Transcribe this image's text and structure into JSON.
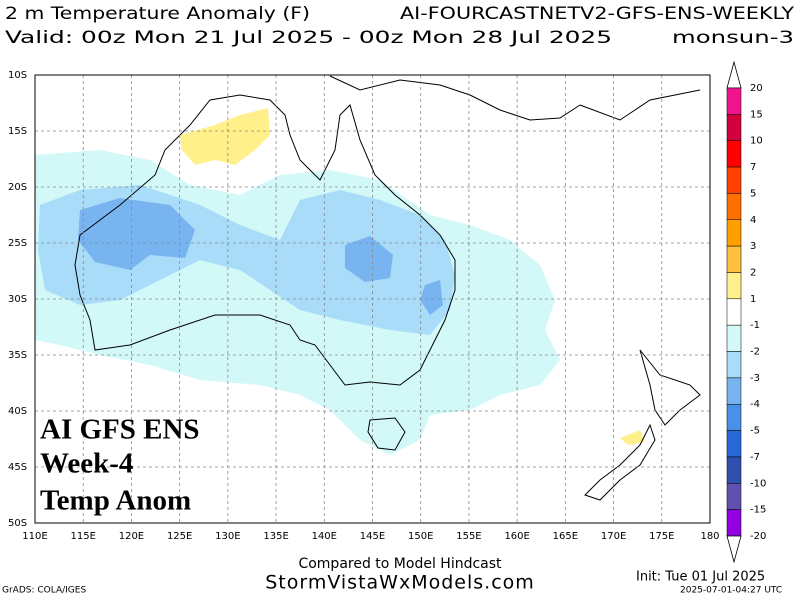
{
  "header": {
    "title": "2 m Temperature Anomaly (F)",
    "model": "AI-FOURCASTNETV2-GFS-ENS-WEEKLY",
    "valid": "Valid: 00z Mon 21 Jul 2025 - 00z Mon 28 Jul 2025",
    "run": "monsun-3"
  },
  "map": {
    "lat_labels": [
      "10S",
      "15S",
      "20S",
      "25S",
      "30S",
      "35S",
      "40S",
      "45S",
      "50S"
    ],
    "lon_labels": [
      "110E",
      "115E",
      "120E",
      "125E",
      "130E",
      "135E",
      "140E",
      "145E",
      "150E",
      "155E",
      "160E",
      "165E",
      "170E",
      "175E",
      "180"
    ]
  },
  "overlay": {
    "lines": [
      "AI GFS ENS",
      "Week-4",
      "Temp Anom"
    ]
  },
  "colorbar": {
    "labels": [
      20,
      15,
      10,
      7,
      5,
      4,
      3,
      2,
      1,
      -1,
      -2,
      -3,
      -4,
      -5,
      -7,
      -10,
      -15,
      -20
    ],
    "colors": [
      "#f0148c",
      "#d2003c",
      "#ff0000",
      "#ff4000",
      "#ff7000",
      "#ffa000",
      "#ffc040",
      "#fff08c",
      "#ffffff",
      "#d2f8f8",
      "#a8dcf8",
      "#78b4f0",
      "#4890e8",
      "#2868d8",
      "#3050b0",
      "#6050b0",
      "#9000e0"
    ]
  },
  "footer": {
    "note": "Compared to Model Hindcast",
    "site": "StormVistaWxModels.com",
    "credit": "GrADS: COLA/IGES",
    "init": "Init: Tue 01 Jul 2025",
    "timestamp": "2025-07-01-04:27 UTC"
  }
}
